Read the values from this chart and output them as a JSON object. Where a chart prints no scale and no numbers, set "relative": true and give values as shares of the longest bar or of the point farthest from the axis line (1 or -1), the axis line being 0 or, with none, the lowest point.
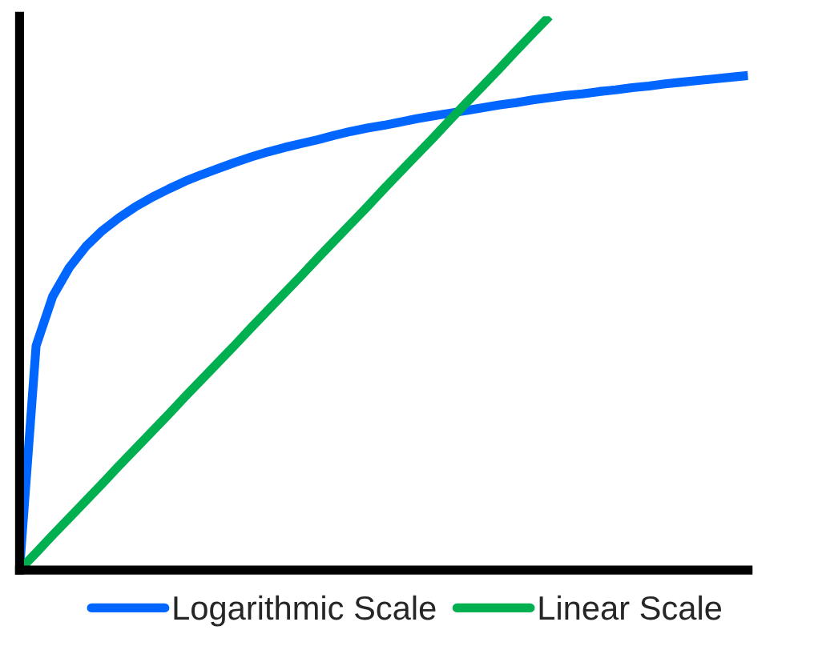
{
  "chart_data": {
    "type": "line",
    "relative": true,
    "legend": "bottom",
    "categories": [
      null,
      null,
      null,
      null,
      null,
      null,
      null,
      null,
      null,
      null,
      null,
      null,
      null,
      null,
      null,
      null,
      null,
      null,
      null,
      null,
      null,
      null,
      null,
      null,
      null,
      null,
      null,
      null,
      null,
      null,
      null,
      null,
      null,
      null,
      null,
      null,
      null,
      null,
      null,
      null,
      null,
      null,
      null,
      null,
      null
    ],
    "series": [
      {
        "name": "Logarithmic Scale",
        "color": "#0066ff",
        "values": [
          0,
          0.405,
          0.494,
          0.546,
          0.584,
          0.613,
          0.636,
          0.656,
          0.673,
          0.688,
          0.702,
          0.714,
          0.725,
          0.736,
          0.746,
          0.755,
          0.763,
          0.77,
          0.777,
          0.785,
          0.792,
          0.798,
          0.803,
          0.809,
          0.815,
          0.82,
          0.825,
          0.83,
          0.835,
          0.84,
          0.844,
          0.849,
          0.853,
          0.857,
          0.86,
          0.864,
          0.867,
          0.871,
          0.874,
          0.878,
          0.881,
          0.884,
          0.887,
          0.89,
          0.893
        ]
      },
      {
        "name": "Linear Scale",
        "color": "#00b050",
        "values": [
          0,
          0.031,
          0.063,
          0.094,
          0.125,
          0.156,
          0.188,
          0.219,
          0.25,
          0.281,
          0.313,
          0.344,
          0.375,
          0.406,
          0.438,
          0.469,
          0.5,
          0.531,
          0.563,
          0.594,
          0.625,
          0.656,
          0.688,
          0.719,
          0.75,
          0.781,
          0.813,
          0.844,
          0.875,
          0.906,
          0.938,
          0.969,
          1,
          null,
          null,
          null,
          null,
          null,
          null,
          null,
          null,
          null,
          null,
          null,
          null
        ]
      }
    ]
  }
}
